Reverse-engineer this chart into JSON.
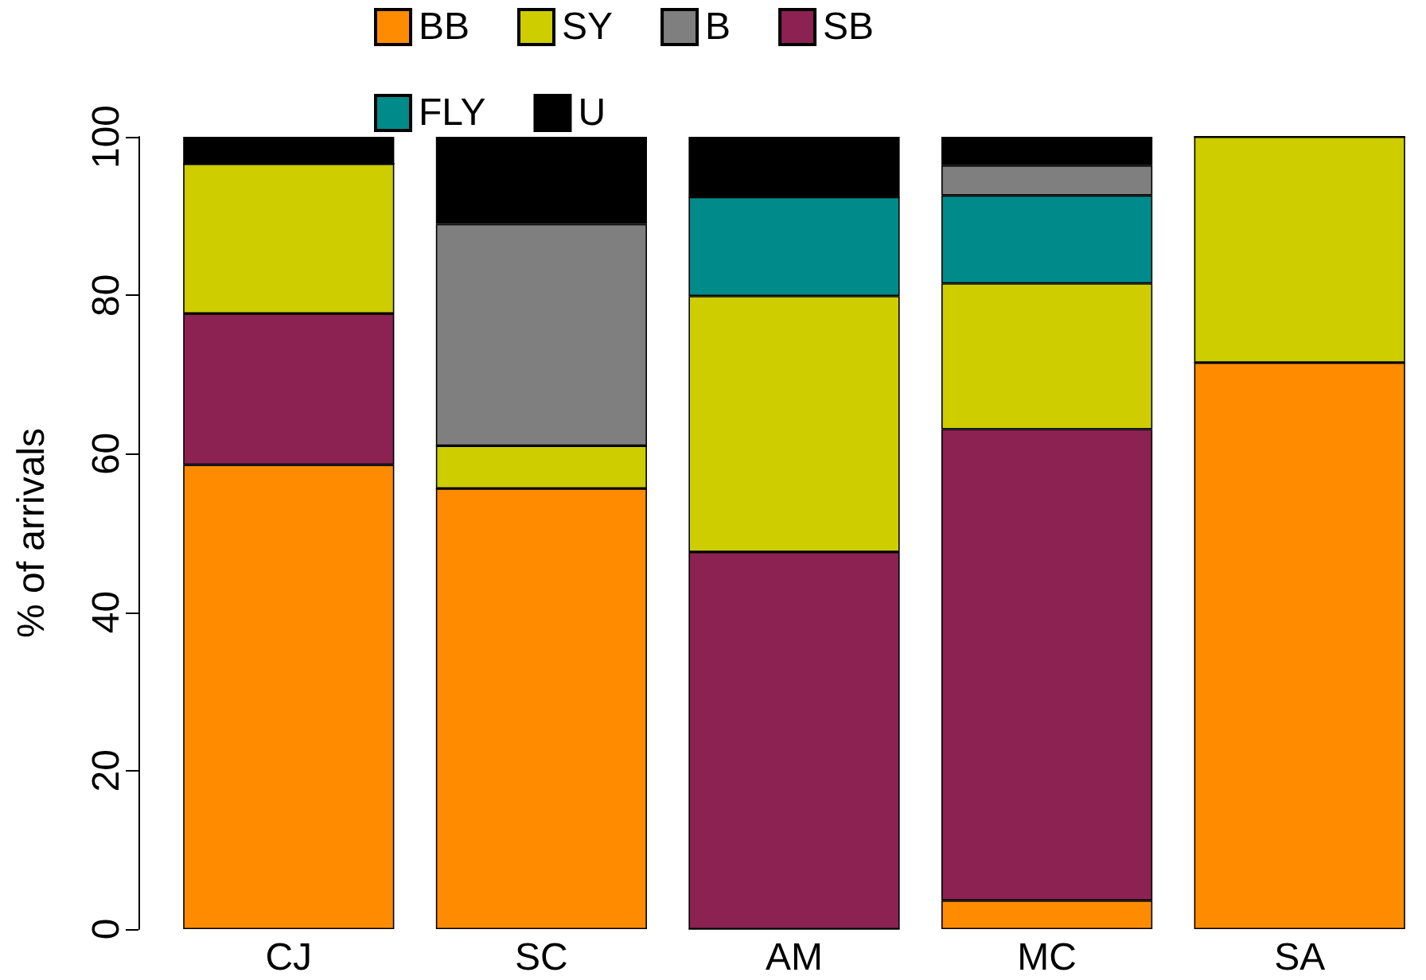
{
  "chart_data": {
    "type": "bar",
    "stacked": true,
    "ylabel": "% of arrivals",
    "categories": [
      "CJ",
      "SC",
      "AM",
      "MC",
      "SA"
    ],
    "series": [
      {
        "name": "BB",
        "color": "#ff8c00",
        "values": [
          58.6,
          55.6,
          0,
          3.6,
          71.5
        ]
      },
      {
        "name": "SB",
        "color": "#8b2252",
        "values": [
          19.1,
          0,
          47.6,
          59.5,
          0
        ]
      },
      {
        "name": "SY",
        "color": "#cdcd00",
        "values": [
          18.9,
          5.4,
          32.3,
          18.4,
          28.5
        ]
      },
      {
        "name": "FLY",
        "color": "#008b8b",
        "values": [
          0,
          0,
          12.5,
          11.1,
          0
        ]
      },
      {
        "name": "B",
        "color": "#7f7f7f",
        "values": [
          0,
          28.0,
          0,
          3.8,
          0
        ]
      },
      {
        "name": "U",
        "color": "#000000",
        "values": [
          3.4,
          11.0,
          7.6,
          3.6,
          0
        ]
      }
    ],
    "ylim": [
      0,
      100
    ],
    "yticks": [
      0,
      20,
      40,
      60,
      80,
      100
    ],
    "grid": false,
    "legend": "top"
  }
}
